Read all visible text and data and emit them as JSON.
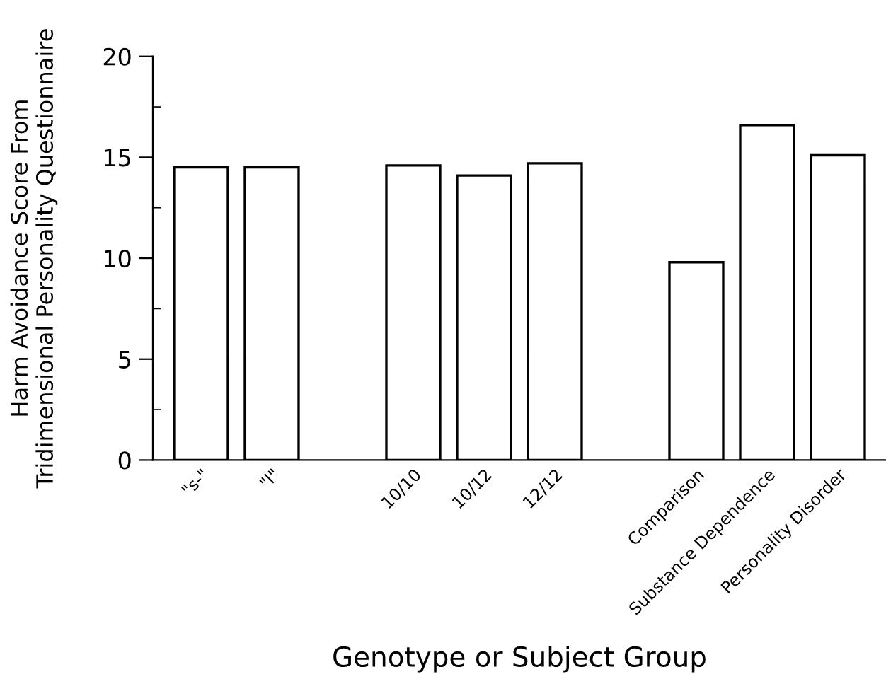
{
  "chart_data": {
    "type": "bar",
    "xlabel": "Genotype or Subject Group",
    "ylabel": "Harm Avoidance Score From\nTridimensional Personality Questionnaire",
    "categories": [
      "\"s-\"",
      "\"l\"",
      null,
      "10/10",
      "10/12",
      "12/12",
      null,
      "Comparison",
      "Substance Dependence",
      "Personality Disorder"
    ],
    "values": [
      14.5,
      14.5,
      null,
      14.6,
      14.1,
      14.7,
      null,
      9.8,
      16.6,
      15.1
    ],
    "color": "#ffffff",
    "ylim": [
      0,
      20
    ],
    "yticks": [
      0,
      {
        "value": 2.5,
        "label": null
      },
      5,
      {
        "value": 7.5,
        "label": null
      },
      10,
      {
        "value": 12.5,
        "label": null
      },
      15,
      {
        "value": 17.5,
        "label": null
      },
      20
    ],
    "grid": false,
    "legend": false
  }
}
